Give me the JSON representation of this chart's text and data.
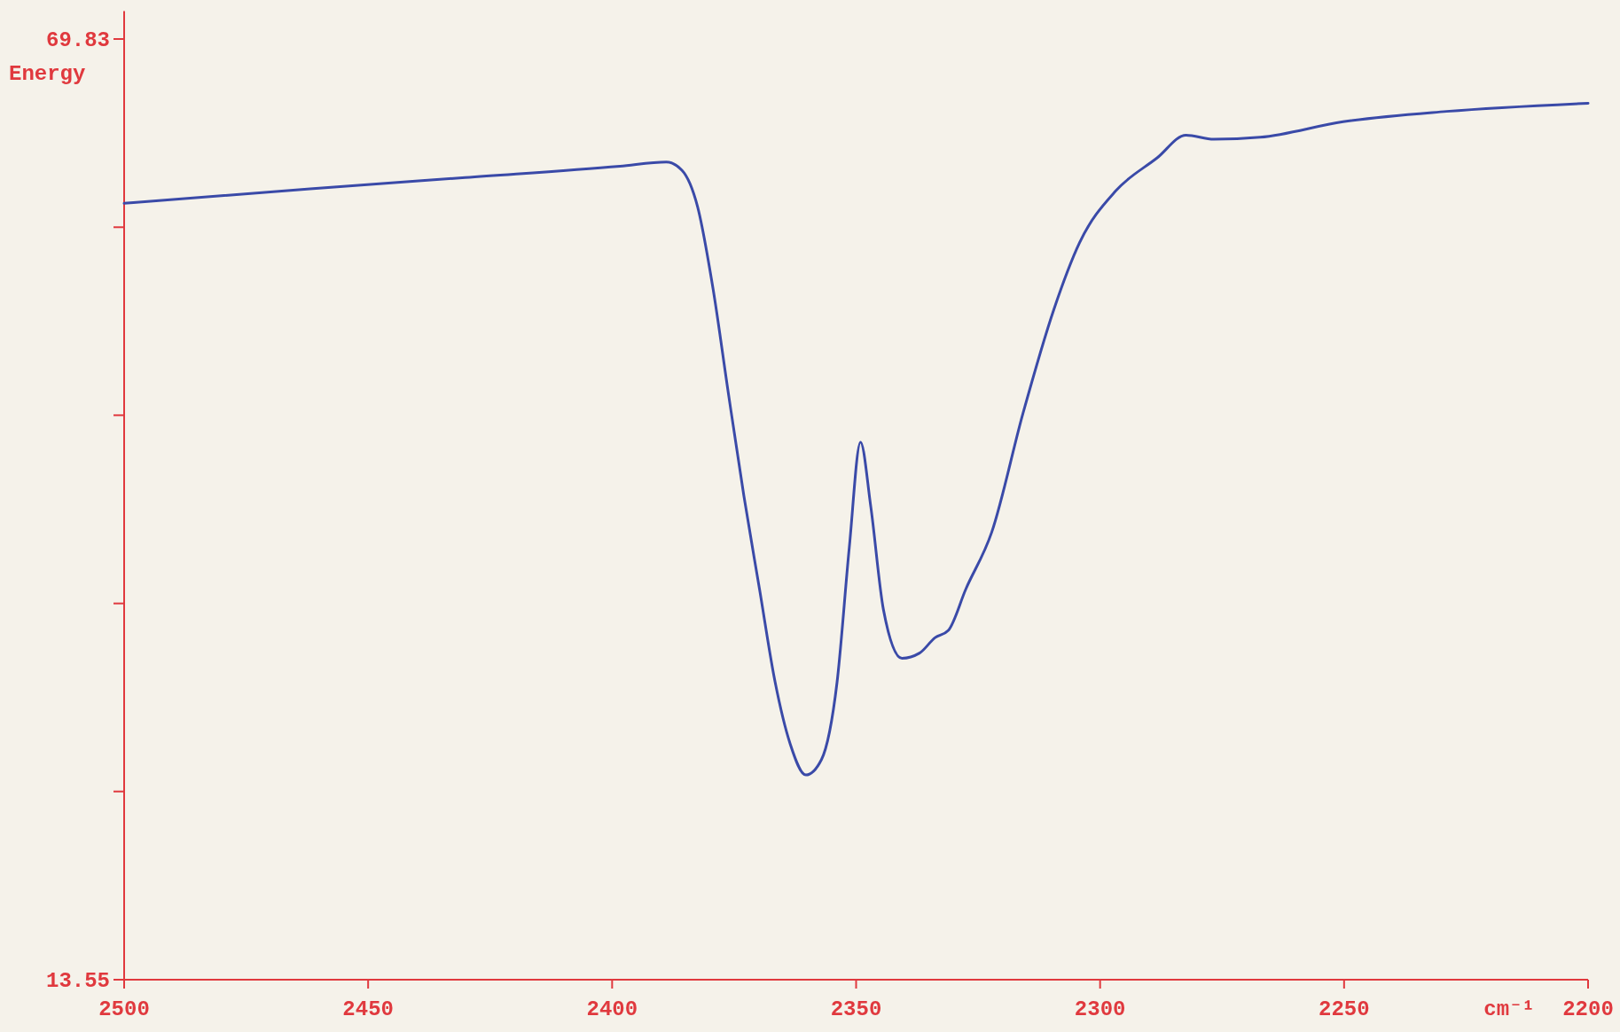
{
  "chart_data": {
    "type": "line",
    "ylabel": "Energy",
    "xlabel": "cm⁻¹",
    "xlim": [
      2500,
      2200
    ],
    "xticks": [
      2500,
      2450,
      2400,
      2350,
      2300,
      2250,
      2200
    ],
    "ylim": [
      13.55,
      71.5
    ],
    "yticks": [
      69.83,
      {
        "value": 58.57,
        "label": null
      },
      {
        "value": 47.32,
        "label": null
      },
      {
        "value": 36.06,
        "label": null
      },
      {
        "value": 24.81,
        "label": null
      },
      13.55
    ],
    "grid": false,
    "series": [
      {
        "color": "#3a4aa8",
        "x": [
          2500,
          2461.9,
          2430.1,
          2398.4,
          2388.9,
          2385.7,
          2382.5,
          2379.3,
          2376.2,
          2373.0,
          2369.8,
          2366.6,
          2363.5,
          2360.3,
          2357.1,
          2353.9,
          2351.4,
          2349.1,
          2347.0,
          2344.4,
          2340.6,
          2337.0,
          2333.8,
          2331.1,
          2327.5,
          2322.2,
          2315.8,
          2309.5,
          2304.2,
          2296.8,
          2288.3,
          2282.4,
          2276.7,
          2267.2,
          2250.2,
          2229.0,
          2200
        ],
        "values": [
          60.0,
          60.86,
          61.54,
          62.22,
          62.47,
          61.98,
          59.81,
          54.86,
          48.68,
          42.5,
          36.93,
          31.36,
          27.65,
          25.8,
          26.72,
          31.36,
          39.4,
          45.71,
          41.87,
          35.69,
          32.78,
          33.09,
          34.02,
          34.45,
          36.93,
          40.33,
          47.44,
          53.63,
          57.65,
          60.74,
          62.72,
          64.08,
          63.83,
          63.95,
          64.88,
          65.5,
          65.99
        ]
      }
    ]
  }
}
